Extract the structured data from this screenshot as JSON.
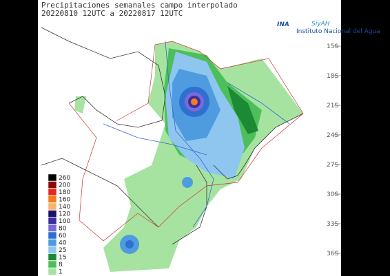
{
  "header": {
    "title": "Precipitaciones semanales campo interpolado",
    "period": "20220810 12UTC a 20220817 12UTC"
  },
  "logo": {
    "name": "INA",
    "product": "SiyAH",
    "subtitle": "Instituto Nacional del Agua"
  },
  "latitudes": [
    "15S",
    "18S",
    "21S",
    "24S",
    "27S",
    "30S",
    "33S",
    "36S"
  ],
  "legend": [
    {
      "value": 260,
      "color": "#000000"
    },
    {
      "value": 200,
      "color": "#8b0a0a"
    },
    {
      "value": 180,
      "color": "#e8261c"
    },
    {
      "value": 160,
      "color": "#f57c1f"
    },
    {
      "value": 140,
      "color": "#f9b36b"
    },
    {
      "value": 120,
      "color": "#1d0f6b"
    },
    {
      "value": 100,
      "color": "#3b2ea0"
    },
    {
      "value": 80,
      "color": "#7a6ad6"
    },
    {
      "value": 60,
      "color": "#2f6fd0"
    },
    {
      "value": 40,
      "color": "#4f9be0"
    },
    {
      "value": 25,
      "color": "#8ec6f0"
    },
    {
      "value": 15,
      "color": "#1c8a34"
    },
    {
      "value": 8,
      "color": "#4cbf5a"
    },
    {
      "value": 1,
      "color": "#a6e3a0"
    }
  ]
}
